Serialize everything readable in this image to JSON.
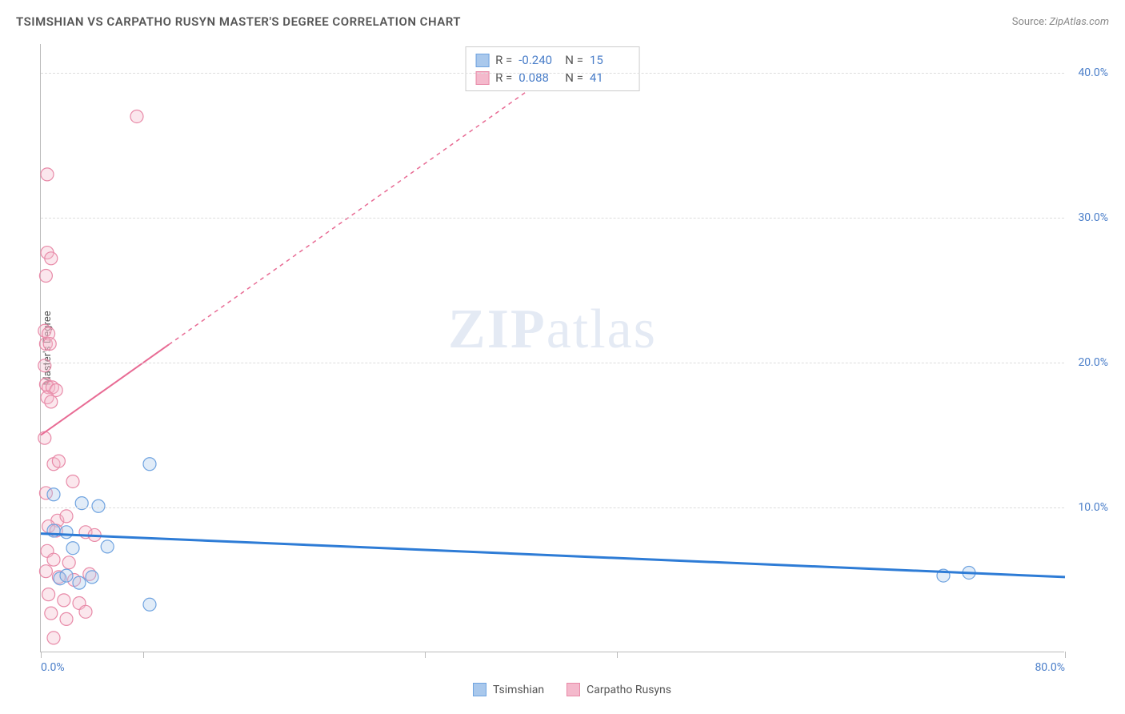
{
  "header": {
    "title": "TSIMSHIAN VS CARPATHO RUSYN MASTER'S DEGREE CORRELATION CHART",
    "source_label": "Source:",
    "source_value": "ZipAtlas.com"
  },
  "chart": {
    "type": "scatter",
    "y_axis_label": "Master's Degree",
    "xlim": [
      0,
      80
    ],
    "ylim": [
      0,
      42
    ],
    "x_ticks_positions": [
      0,
      8,
      30,
      45,
      80
    ],
    "x_tick_labels": [
      {
        "pos": 0,
        "label": "0.0%",
        "align": "left"
      },
      {
        "pos": 80,
        "label": "80.0%",
        "align": "right"
      }
    ],
    "y_grid": [
      10,
      20,
      30,
      40
    ],
    "y_tick_labels": [
      {
        "pos": 10,
        "label": "10.0%"
      },
      {
        "pos": 20,
        "label": "20.0%"
      },
      {
        "pos": 30,
        "label": "30.0%"
      },
      {
        "pos": 40,
        "label": "40.0%"
      }
    ],
    "grid_color": "#dddddd",
    "background_color": "#ffffff",
    "axis_color": "#bbbbbb",
    "tick_label_color": "#4a7ec9",
    "watermark_text_bold": "ZIP",
    "watermark_text_rest": "atlas",
    "series": {
      "tsimshian": {
        "label": "Tsimshian",
        "marker_color": "#6fa3e0",
        "marker_fill": "#a9c8ec",
        "marker_radius": 8,
        "line_color": "#2e7cd6",
        "line_width": 3,
        "line_dash": "none",
        "trend": {
          "x1": 0,
          "y1": 8.2,
          "x2": 80,
          "y2": 5.2
        },
        "points": [
          [
            1.0,
            10.9
          ],
          [
            3.2,
            10.3
          ],
          [
            4.5,
            10.1
          ],
          [
            8.5,
            13.0
          ],
          [
            1.0,
            8.4
          ],
          [
            2.0,
            8.3
          ],
          [
            2.5,
            7.2
          ],
          [
            5.2,
            7.3
          ],
          [
            1.5,
            5.1
          ],
          [
            2.0,
            5.3
          ],
          [
            3.0,
            4.8
          ],
          [
            4.0,
            5.2
          ],
          [
            8.5,
            3.3
          ],
          [
            70.5,
            5.3
          ],
          [
            72.5,
            5.5
          ]
        ]
      },
      "carpatho": {
        "label": "Carpatho Rusyns",
        "marker_color": "#e88aa8",
        "marker_fill": "#f4b9cc",
        "marker_radius": 8,
        "line_color": "#e86b94",
        "line_width": 2,
        "line_dash": "5,5",
        "trend": {
          "x1": 0,
          "y1": 15.0,
          "x2": 40,
          "y2": 40.0
        },
        "trend_solid_until": 10,
        "points": [
          [
            0.5,
            33.0
          ],
          [
            7.5,
            37.0
          ],
          [
            0.5,
            27.6
          ],
          [
            0.8,
            27.2
          ],
          [
            0.4,
            26.0
          ],
          [
            0.3,
            22.2
          ],
          [
            0.6,
            22.0
          ],
          [
            0.4,
            21.3
          ],
          [
            0.7,
            21.3
          ],
          [
            0.3,
            19.8
          ],
          [
            0.4,
            18.5
          ],
          [
            0.6,
            18.3
          ],
          [
            0.9,
            18.3
          ],
          [
            1.2,
            18.1
          ],
          [
            0.5,
            17.6
          ],
          [
            0.8,
            17.3
          ],
          [
            0.3,
            14.8
          ],
          [
            1.0,
            13.0
          ],
          [
            1.4,
            13.2
          ],
          [
            2.5,
            11.8
          ],
          [
            0.4,
            11.0
          ],
          [
            1.3,
            9.1
          ],
          [
            2.0,
            9.4
          ],
          [
            0.6,
            8.7
          ],
          [
            1.2,
            8.4
          ],
          [
            3.5,
            8.3
          ],
          [
            4.2,
            8.1
          ],
          [
            0.5,
            7.0
          ],
          [
            1.0,
            6.4
          ],
          [
            2.2,
            6.2
          ],
          [
            0.4,
            5.6
          ],
          [
            1.4,
            5.2
          ],
          [
            2.6,
            5.0
          ],
          [
            3.8,
            5.4
          ],
          [
            0.6,
            4.0
          ],
          [
            1.8,
            3.6
          ],
          [
            3.0,
            3.4
          ],
          [
            0.8,
            2.7
          ],
          [
            2.0,
            2.3
          ],
          [
            3.5,
            2.8
          ],
          [
            1.0,
            1.0
          ]
        ]
      }
    },
    "stats_box": {
      "rows": [
        {
          "swatch_fill": "#a9c8ec",
          "swatch_border": "#6fa3e0",
          "r_label": "R =",
          "r_val": "-0.240",
          "n_label": "N =",
          "n_val": "15"
        },
        {
          "swatch_fill": "#f4b9cc",
          "swatch_border": "#e88aa8",
          "r_label": "R =",
          "r_val": " 0.088",
          "n_label": "N =",
          "n_val": "41"
        }
      ]
    },
    "bottom_legend": [
      {
        "swatch_fill": "#a9c8ec",
        "swatch_border": "#6fa3e0",
        "label": "Tsimshian"
      },
      {
        "swatch_fill": "#f4b9cc",
        "swatch_border": "#e88aa8",
        "label": "Carpatho Rusyns"
      }
    ]
  }
}
